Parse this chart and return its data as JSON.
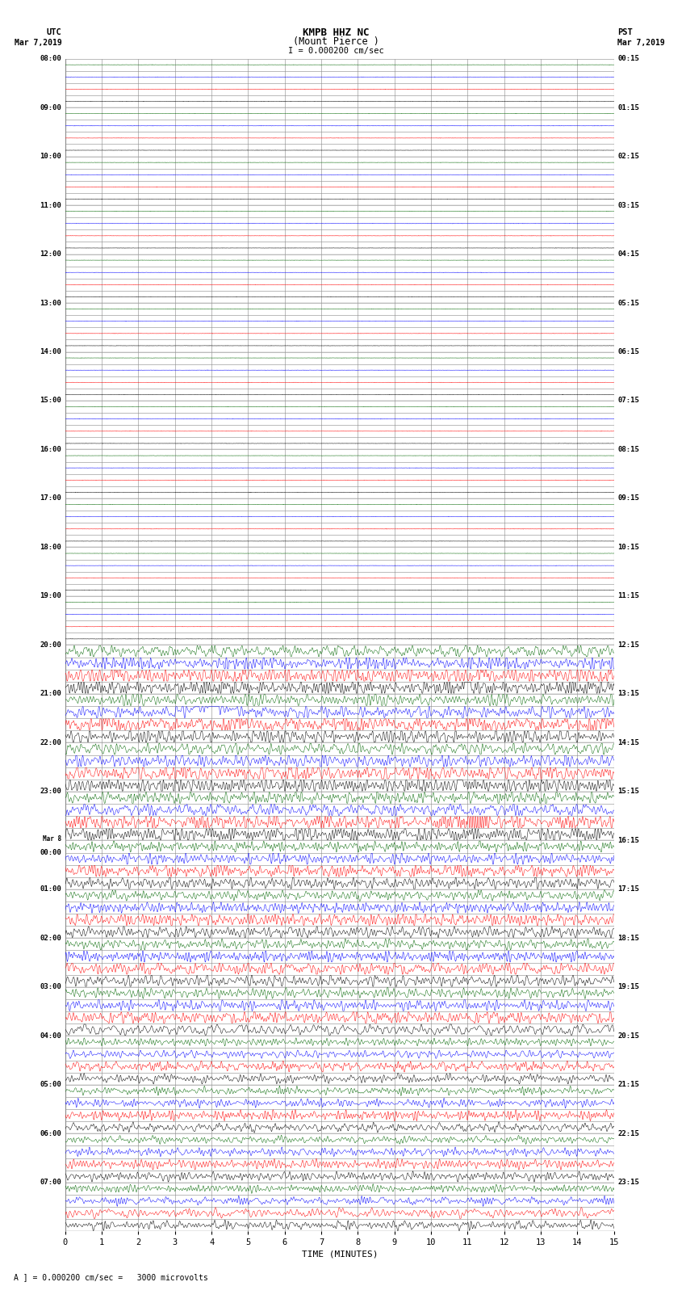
{
  "title_line1": "KMPB HHZ NC",
  "title_line2": "(Mount Pierce )",
  "scale_bar_text": "I = 0.000200 cm/sec",
  "utc_label": "UTC",
  "utc_date": "Mar 7,2019",
  "pst_label": "PST",
  "pst_date": "Mar 7,2019",
  "xlabel": "TIME (MINUTES)",
  "footer_text": "A ] = 0.000200 cm/sec =   3000 microvolts",
  "utc_times": [
    "08:00",
    "09:00",
    "10:00",
    "11:00",
    "12:00",
    "13:00",
    "14:00",
    "15:00",
    "16:00",
    "17:00",
    "18:00",
    "19:00",
    "20:00",
    "21:00",
    "22:00",
    "23:00",
    "Mar 8\n00:00",
    "01:00",
    "02:00",
    "03:00",
    "04:00",
    "05:00",
    "06:00",
    "07:00"
  ],
  "pst_times": [
    "00:15",
    "01:15",
    "02:15",
    "03:15",
    "04:15",
    "05:15",
    "06:15",
    "07:15",
    "08:15",
    "09:15",
    "10:15",
    "11:15",
    "12:15",
    "13:15",
    "14:15",
    "15:15",
    "16:15",
    "17:15",
    "18:15",
    "19:15",
    "20:15",
    "21:15",
    "22:15",
    "23:15"
  ],
  "num_rows": 24,
  "traces_per_row": 4,
  "minutes_per_row": 15,
  "bg_color": "#ffffff",
  "grid_color": "#888888",
  "trace_colors": [
    "#000000",
    "#ff0000",
    "#0000ff",
    "#006600"
  ],
  "quiet_rows": 12,
  "fig_width": 8.5,
  "fig_height": 16.13
}
